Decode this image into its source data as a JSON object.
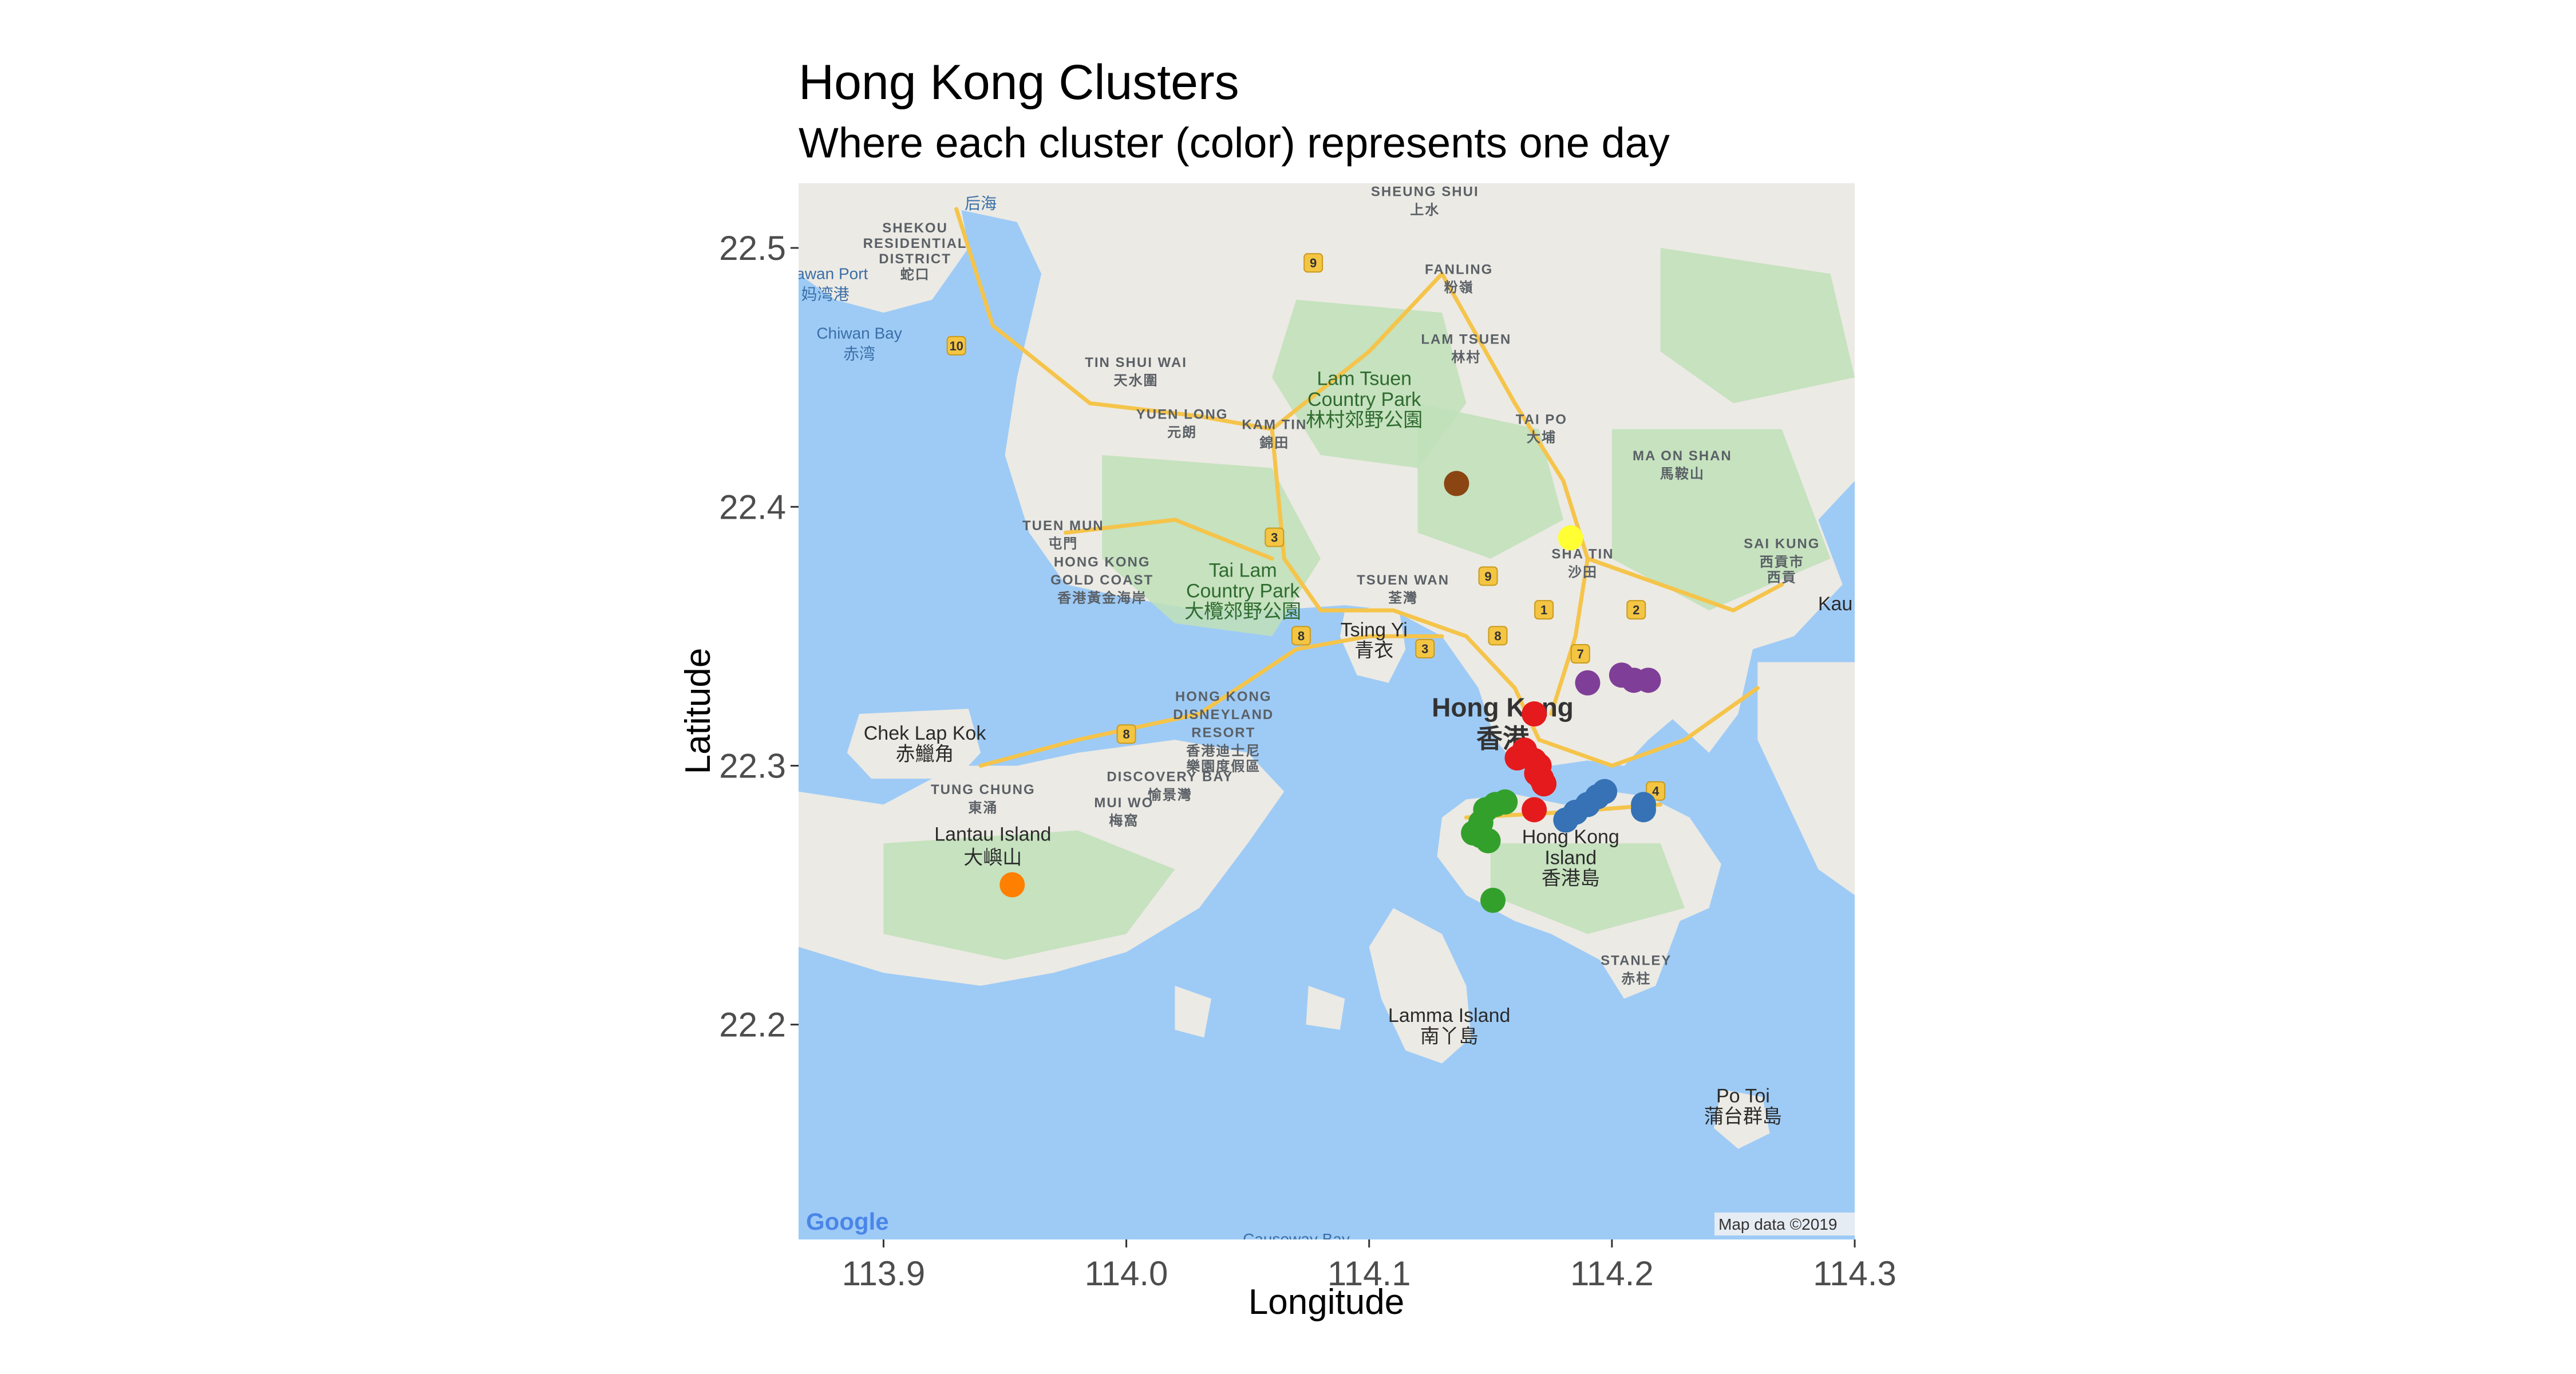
{
  "title": "Hong Kong Clusters",
  "subtitle": "Where each cluster (color) represents one day",
  "map": {
    "attribution": "Map data ©2019",
    "logo": "Google",
    "water_color": "#9ecbf6",
    "land_color": "#eceae4",
    "park_color": "#bfe0b8",
    "road_color": "#f5c44a",
    "labels": [
      {
        "name": "Hong Kong",
        "lon": 114.155,
        "lat": 22.319,
        "cls": "lbl-dark-big"
      },
      {
        "name": "香港",
        "lon": 114.155,
        "lat": 22.307,
        "cls": "lbl-dark-big"
      },
      {
        "name": "Lantau Island",
        "lon": 113.945,
        "lat": 22.271,
        "cls": "lbl-dark"
      },
      {
        "name": "大嶼山",
        "lon": 113.945,
        "lat": 22.262,
        "cls": "lbl-dark"
      },
      {
        "name": "Chek Lap Kok",
        "lon": 113.917,
        "lat": 22.31,
        "cls": "lbl-dark"
      },
      {
        "name": "赤鱲角",
        "lon": 113.917,
        "lat": 22.302,
        "cls": "lbl-dark"
      },
      {
        "name": "Tsing Yi",
        "lon": 114.102,
        "lat": 22.35,
        "cls": "lbl-dark"
      },
      {
        "name": "青衣",
        "lon": 114.102,
        "lat": 22.342,
        "cls": "lbl-dark"
      },
      {
        "name": "Hong Kong",
        "lon": 114.183,
        "lat": 22.27,
        "cls": "lbl-dark"
      },
      {
        "name": "Island",
        "lon": 114.183,
        "lat": 22.262,
        "cls": "lbl-dark"
      },
      {
        "name": "香港島",
        "lon": 114.183,
        "lat": 22.254,
        "cls": "lbl-dark"
      },
      {
        "name": "Lamma Island",
        "lon": 114.133,
        "lat": 22.201,
        "cls": "lbl-dark"
      },
      {
        "name": "南丫島",
        "lon": 114.133,
        "lat": 22.193,
        "cls": "lbl-dark"
      },
      {
        "name": "Po Toi",
        "lon": 114.254,
        "lat": 22.17,
        "cls": "lbl-dark"
      },
      {
        "name": "蒲台群島",
        "lon": 114.254,
        "lat": 22.162,
        "cls": "lbl-dark"
      },
      {
        "name": "Kau",
        "lon": 114.292,
        "lat": 22.36,
        "cls": "lbl-dark"
      },
      {
        "name": "Lam Tsuen",
        "lon": 114.098,
        "lat": 22.447,
        "cls": "lbl-green"
      },
      {
        "name": "Country Park",
        "lon": 114.098,
        "lat": 22.439,
        "cls": "lbl-green"
      },
      {
        "name": "林村郊野公園",
        "lon": 114.098,
        "lat": 22.431,
        "cls": "lbl-green"
      },
      {
        "name": "Tai Lam",
        "lon": 114.048,
        "lat": 22.373,
        "cls": "lbl-green"
      },
      {
        "name": "Country Park",
        "lon": 114.048,
        "lat": 22.365,
        "cls": "lbl-green"
      },
      {
        "name": "大欖郊野公園",
        "lon": 114.048,
        "lat": 22.357,
        "cls": "lbl-green"
      },
      {
        "name": "SHEUNG SHUI",
        "lon": 114.123,
        "lat": 22.52,
        "cls": "lbl-grey"
      },
      {
        "name": "上水",
        "lon": 114.123,
        "lat": 22.513,
        "cls": "lbl-grey"
      },
      {
        "name": "FANLING",
        "lon": 114.137,
        "lat": 22.49,
        "cls": "lbl-grey"
      },
      {
        "name": "粉嶺",
        "lon": 114.137,
        "lat": 22.483,
        "cls": "lbl-grey"
      },
      {
        "name": "LAM TSUEN",
        "lon": 114.14,
        "lat": 22.463,
        "cls": "lbl-grey"
      },
      {
        "name": "林村",
        "lon": 114.14,
        "lat": 22.456,
        "cls": "lbl-grey"
      },
      {
        "name": "TIN SHUI WAI",
        "lon": 114.004,
        "lat": 22.454,
        "cls": "lbl-grey"
      },
      {
        "name": "天水圍",
        "lon": 114.004,
        "lat": 22.447,
        "cls": "lbl-grey"
      },
      {
        "name": "YUEN LONG",
        "lon": 114.023,
        "lat": 22.434,
        "cls": "lbl-grey"
      },
      {
        "name": "元朗",
        "lon": 114.023,
        "lat": 22.427,
        "cls": "lbl-grey"
      },
      {
        "name": "KAM TIN",
        "lon": 114.061,
        "lat": 22.43,
        "cls": "lbl-grey"
      },
      {
        "name": "錦田",
        "lon": 114.061,
        "lat": 22.423,
        "cls": "lbl-grey"
      },
      {
        "name": "TAI PO",
        "lon": 114.171,
        "lat": 22.432,
        "cls": "lbl-grey"
      },
      {
        "name": "大埔",
        "lon": 114.171,
        "lat": 22.425,
        "cls": "lbl-grey"
      },
      {
        "name": "MA ON SHAN",
        "lon": 114.229,
        "lat": 22.418,
        "cls": "lbl-grey"
      },
      {
        "name": "馬鞍山",
        "lon": 114.229,
        "lat": 22.411,
        "cls": "lbl-grey"
      },
      {
        "name": "SAI KUNG",
        "lon": 114.27,
        "lat": 22.384,
        "cls": "lbl-grey"
      },
      {
        "name": "西貢市",
        "lon": 114.27,
        "lat": 22.377,
        "cls": "lbl-grey"
      },
      {
        "name": "西貢",
        "lon": 114.27,
        "lat": 22.371,
        "cls": "lbl-grey"
      },
      {
        "name": "SHA TIN",
        "lon": 114.188,
        "lat": 22.38,
        "cls": "lbl-grey"
      },
      {
        "name": "沙田",
        "lon": 114.188,
        "lat": 22.373,
        "cls": "lbl-grey"
      },
      {
        "name": "TSUEN WAN",
        "lon": 114.114,
        "lat": 22.37,
        "cls": "lbl-grey"
      },
      {
        "name": "荃灣",
        "lon": 114.114,
        "lat": 22.363,
        "cls": "lbl-grey"
      },
      {
        "name": "TUEN MUN",
        "lon": 113.974,
        "lat": 22.391,
        "cls": "lbl-grey"
      },
      {
        "name": "屯門",
        "lon": 113.974,
        "lat": 22.384,
        "cls": "lbl-grey"
      },
      {
        "name": "HONG KONG",
        "lon": 113.99,
        "lat": 22.377,
        "cls": "lbl-grey"
      },
      {
        "name": "GOLD COAST",
        "lon": 113.99,
        "lat": 22.37,
        "cls": "lbl-grey"
      },
      {
        "name": "香港黃金海岸",
        "lon": 113.99,
        "lat": 22.363,
        "cls": "lbl-grey"
      },
      {
        "name": "HONG KONG",
        "lon": 114.04,
        "lat": 22.325,
        "cls": "lbl-grey"
      },
      {
        "name": "DISNEYLAND",
        "lon": 114.04,
        "lat": 22.318,
        "cls": "lbl-grey"
      },
      {
        "name": "RESORT",
        "lon": 114.04,
        "lat": 22.311,
        "cls": "lbl-grey"
      },
      {
        "name": "香港迪士尼",
        "lon": 114.04,
        "lat": 22.304,
        "cls": "lbl-grey"
      },
      {
        "name": "樂園度假區",
        "lon": 114.04,
        "lat": 22.298,
        "cls": "lbl-grey"
      },
      {
        "name": "DISCOVERY BAY",
        "lon": 114.018,
        "lat": 22.294,
        "cls": "lbl-grey"
      },
      {
        "name": "愉景灣",
        "lon": 114.018,
        "lat": 22.287,
        "cls": "lbl-grey"
      },
      {
        "name": "TUNG CHUNG",
        "lon": 113.941,
        "lat": 22.289,
        "cls": "lbl-grey"
      },
      {
        "name": "東涌",
        "lon": 113.941,
        "lat": 22.282,
        "cls": "lbl-grey"
      },
      {
        "name": "MUI WO",
        "lon": 113.999,
        "lat": 22.284,
        "cls": "lbl-grey"
      },
      {
        "name": "梅窩",
        "lon": 113.999,
        "lat": 22.277,
        "cls": "lbl-grey"
      },
      {
        "name": "STANLEY",
        "lon": 114.21,
        "lat": 22.223,
        "cls": "lbl-grey"
      },
      {
        "name": "赤柱",
        "lon": 114.21,
        "lat": 22.216,
        "cls": "lbl-grey"
      },
      {
        "name": "SHEKOU",
        "lon": 113.913,
        "lat": 22.506,
        "cls": "lbl-grey"
      },
      {
        "name": "RESIDENTIAL",
        "lon": 113.913,
        "lat": 22.5,
        "cls": "lbl-grey"
      },
      {
        "name": "DISTRICT",
        "lon": 113.913,
        "lat": 22.494,
        "cls": "lbl-grey"
      },
      {
        "name": "蛇口",
        "lon": 113.913,
        "lat": 22.488,
        "cls": "lbl-grey"
      },
      {
        "name": "Mawan Port",
        "lon": 113.876,
        "lat": 22.488,
        "cls": "lbl-water"
      },
      {
        "name": "妈湾港",
        "lon": 113.876,
        "lat": 22.48,
        "cls": "lbl-water"
      },
      {
        "name": "Chiwan Bay",
        "lon": 113.89,
        "lat": 22.465,
        "cls": "lbl-water"
      },
      {
        "name": "赤湾",
        "lon": 113.89,
        "lat": 22.457,
        "cls": "lbl-water"
      },
      {
        "name": "后海",
        "lon": 113.94,
        "lat": 22.515,
        "cls": "lbl-water"
      },
      {
        "name": "Causeway Bay",
        "lon": 114.07,
        "lat": 22.115,
        "cls": "lbl-water"
      }
    ],
    "route_shields": [
      {
        "num": "9",
        "lon": 114.077,
        "lat": 22.494
      },
      {
        "num": "10",
        "lon": 113.93,
        "lat": 22.462
      },
      {
        "num": "3",
        "lon": 114.061,
        "lat": 22.388
      },
      {
        "num": "9",
        "lon": 114.149,
        "lat": 22.373
      },
      {
        "num": "1",
        "lon": 114.172,
        "lat": 22.36
      },
      {
        "num": "2",
        "lon": 114.21,
        "lat": 22.36
      },
      {
        "name_placeholder": "",
        "num": "8",
        "lon": 114.072,
        "lat": 22.35
      },
      {
        "num": "3",
        "lon": 114.123,
        "lat": 22.345
      },
      {
        "num": "8",
        "lon": 114.153,
        "lat": 22.35
      },
      {
        "num": "7",
        "lon": 114.187,
        "lat": 22.343
      },
      {
        "num": "8",
        "lon": 114.0,
        "lat": 22.312
      },
      {
        "num": "4",
        "lon": 114.218,
        "lat": 22.29
      }
    ]
  },
  "chart_data": {
    "type": "scatter",
    "title": "Hong Kong Clusters",
    "subtitle": "Where each cluster (color) represents one day",
    "xlabel": "Longitude",
    "ylabel": "Latitude",
    "xlim": [
      113.865,
      114.3
    ],
    "ylim": [
      22.117,
      22.525
    ],
    "x_ticks": [
      "113.9",
      "114.0",
      "114.1",
      "114.2",
      "114.3"
    ],
    "y_ticks": [
      "22.2",
      "22.3",
      "22.4",
      "22.5"
    ],
    "grid": false,
    "legend": "none",
    "series": [
      {
        "color": "#8b4513",
        "points": [
          [
            114.136,
            22.409
          ]
        ]
      },
      {
        "color": "#ffff33",
        "points": [
          [
            114.183,
            22.388
          ]
        ]
      },
      {
        "color": "#7f3f98",
        "points": [
          [
            114.19,
            22.332
          ],
          [
            114.204,
            22.335
          ],
          [
            114.209,
            22.333
          ],
          [
            114.215,
            22.333
          ]
        ]
      },
      {
        "color": "#e41a1c",
        "points": [
          [
            114.168,
            22.32
          ],
          [
            114.164,
            22.306
          ],
          [
            114.161,
            22.303
          ],
          [
            114.168,
            22.302
          ],
          [
            114.17,
            22.3
          ],
          [
            114.169,
            22.297
          ],
          [
            114.171,
            22.295
          ],
          [
            114.172,
            22.293
          ],
          [
            114.168,
            22.283
          ]
        ]
      },
      {
        "color": "#3672b5",
        "points": [
          [
            114.181,
            22.279
          ],
          [
            114.185,
            22.282
          ],
          [
            114.19,
            22.285
          ],
          [
            114.194,
            22.288
          ],
          [
            114.197,
            22.29
          ],
          [
            114.213,
            22.283
          ],
          [
            114.213,
            22.285
          ]
        ]
      },
      {
        "color": "#33a02c",
        "points": [
          [
            114.152,
            22.285
          ],
          [
            114.156,
            22.286
          ],
          [
            114.148,
            22.283
          ],
          [
            114.146,
            22.278
          ],
          [
            114.143,
            22.274
          ],
          [
            114.146,
            22.273
          ],
          [
            114.149,
            22.271
          ],
          [
            114.151,
            22.248
          ]
        ]
      },
      {
        "color": "#ff7f00",
        "points": [
          [
            113.953,
            22.254
          ]
        ]
      }
    ]
  }
}
